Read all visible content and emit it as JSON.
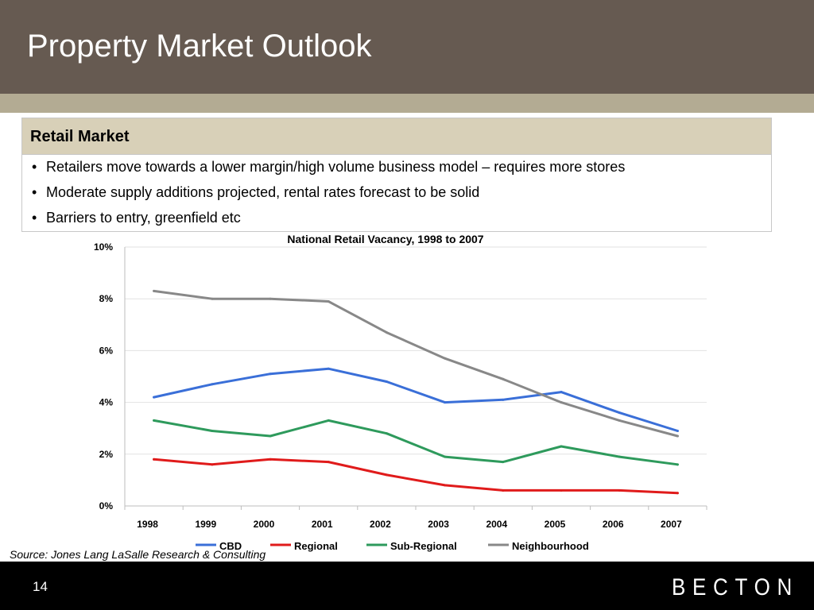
{
  "slide": {
    "title": "Property Market Outlook",
    "page_number": "14",
    "source": "Source: Jones Lang LaSalle Research & Consulting",
    "logo_text": "BECTON"
  },
  "box": {
    "title": "Retail Market",
    "bullets": [
      "Retailers move towards a lower margin/high volume business model – requires more stores",
      "Moderate supply additions projected, rental rates forecast to be solid",
      "Barriers to entry, greenfield etc"
    ]
  },
  "colors": {
    "header": "#665a51",
    "accent": "#b3ab93",
    "box_header": "#d8d0b8"
  },
  "chart_data": {
    "type": "line",
    "title": "National Retail Vacancy, 1998 to 2007",
    "xlabel": "",
    "ylabel": "",
    "categories": [
      "1998",
      "1999",
      "2000",
      "2001",
      "2002",
      "2003",
      "2004",
      "2005",
      "2006",
      "2007"
    ],
    "ylim": [
      0,
      10
    ],
    "y_ticks": [
      0,
      2,
      4,
      6,
      8,
      10
    ],
    "y_tick_labels": [
      "0%",
      "2%",
      "4%",
      "6%",
      "8%",
      "10%"
    ],
    "grid": true,
    "legend_position": "bottom",
    "series": [
      {
        "name": "CBD",
        "color": "#3a6fd8",
        "values": [
          4.2,
          4.7,
          5.1,
          5.3,
          4.8,
          4.0,
          4.1,
          4.4,
          3.6,
          2.9
        ]
      },
      {
        "name": "Regional",
        "color": "#e01b1b",
        "values": [
          1.8,
          1.6,
          1.8,
          1.7,
          1.2,
          0.8,
          0.6,
          0.6,
          0.6,
          0.5
        ]
      },
      {
        "name": "Sub-Regional",
        "color": "#2e9a5c",
        "values": [
          3.3,
          2.9,
          2.7,
          3.3,
          2.8,
          1.9,
          1.7,
          2.3,
          1.9,
          1.6
        ]
      },
      {
        "name": "Neighbourhood",
        "color": "#888888",
        "values": [
          8.3,
          8.0,
          8.0,
          7.9,
          6.7,
          5.7,
          4.9,
          4.0,
          3.3,
          2.7
        ]
      }
    ]
  }
}
